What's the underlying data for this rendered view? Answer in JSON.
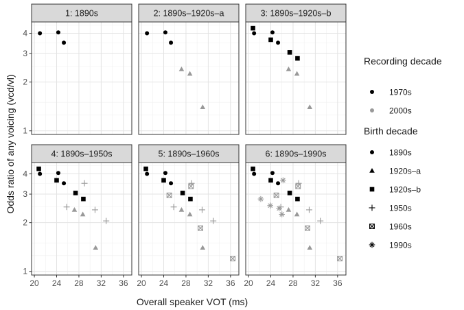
{
  "chart_data": {
    "type": "scatter",
    "xlabel": "Overall speaker VOT (ms)",
    "ylabel": "Odds ratio of any voicing (vcd/vl)",
    "xlim": [
      19.5,
      37.5
    ],
    "ylim": [
      0.95,
      4.7
    ],
    "y_scale": "log",
    "x_ticks": [
      20,
      24,
      28,
      32,
      36
    ],
    "y_ticks": [
      1,
      2,
      3,
      4
    ],
    "grid": true,
    "panels": [
      "1: 1890s",
      "2: 1890s–1920s–a",
      "3: 1890s–1920s–b",
      "4: 1890s–1950s",
      "5: 1890s–1960s",
      "6: 1890s–1990s"
    ],
    "legend_position": "right",
    "color_legend": {
      "title": "Recording decade",
      "entries": [
        {
          "label": "1970s",
          "color": "#000000"
        },
        {
          "label": "2000s",
          "color": "#999999"
        }
      ]
    },
    "shape_legend": {
      "title": "Birth decade",
      "entries": [
        {
          "label": "1890s",
          "shape": "circle"
        },
        {
          "label": "1920s–a",
          "shape": "triangle"
        },
        {
          "label": "1920s–b",
          "shape": "square"
        },
        {
          "label": "1950s",
          "shape": "plus"
        },
        {
          "label": "1960s",
          "shape": "boxcross"
        },
        {
          "label": "1990s",
          "shape": "asterisk"
        }
      ]
    },
    "groups": {
      "1890s": [
        {
          "x": 21.0,
          "y": 4.0,
          "rec": "1970s"
        },
        {
          "x": 24.3,
          "y": 4.05,
          "rec": "1970s"
        },
        {
          "x": 25.3,
          "y": 3.5,
          "rec": "1970s"
        }
      ],
      "1920s–a": [
        {
          "x": 27.2,
          "y": 2.4,
          "rec": "2000s"
        },
        {
          "x": 28.7,
          "y": 2.25,
          "rec": "2000s"
        },
        {
          "x": 31.0,
          "y": 1.4,
          "rec": "2000s"
        }
      ],
      "1920s–b": [
        {
          "x": 20.8,
          "y": 4.3,
          "rec": "1970s"
        },
        {
          "x": 24.0,
          "y": 3.65,
          "rec": "1970s"
        },
        {
          "x": 27.4,
          "y": 3.05,
          "rec": "1970s"
        },
        {
          "x": 28.8,
          "y": 2.8,
          "rec": "1970s"
        }
      ],
      "1950s": [
        {
          "x": 25.8,
          "y": 2.5,
          "rec": "2000s"
        },
        {
          "x": 29.0,
          "y": 3.5,
          "rec": "2000s"
        },
        {
          "x": 30.9,
          "y": 2.4,
          "rec": "2000s"
        },
        {
          "x": 32.9,
          "y": 2.05,
          "rec": "2000s"
        }
      ],
      "1960s": [
        {
          "x": 25.0,
          "y": 2.95,
          "rec": "2000s"
        },
        {
          "x": 28.9,
          "y": 3.35,
          "rec": "2000s"
        },
        {
          "x": 30.6,
          "y": 1.85,
          "rec": "2000s"
        },
        {
          "x": 36.4,
          "y": 1.2,
          "rec": "2000s"
        }
      ],
      "1990s": [
        {
          "x": 22.2,
          "y": 2.8,
          "rec": "2000s"
        },
        {
          "x": 23.9,
          "y": 2.55,
          "rec": "2000s"
        },
        {
          "x": 25.5,
          "y": 2.45,
          "rec": "2000s"
        },
        {
          "x": 26.0,
          "y": 2.25,
          "rec": "2000s"
        },
        {
          "x": 26.2,
          "y": 3.65,
          "rec": "2000s"
        }
      ]
    },
    "panel_groups": [
      [
        "1890s"
      ],
      [
        "1890s",
        "1920s–a"
      ],
      [
        "1890s",
        "1920s–a",
        "1920s–b"
      ],
      [
        "1890s",
        "1920s–a",
        "1920s–b",
        "1950s"
      ],
      [
        "1890s",
        "1920s–a",
        "1920s–b",
        "1950s",
        "1960s"
      ],
      [
        "1890s",
        "1920s–a",
        "1920s–b",
        "1950s",
        "1960s",
        "1990s"
      ]
    ]
  }
}
